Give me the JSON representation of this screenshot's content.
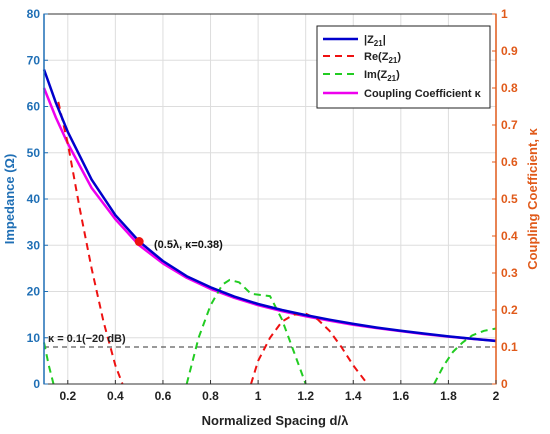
{
  "chart_data": {
    "type": "line",
    "xlabel": "Normalized Spacing d/λ",
    "ylabel_left": "Impedance (Ω)",
    "ylabel_right": "Coupling Coefficient, κ",
    "xlim": [
      0.1,
      2
    ],
    "ylim_left": [
      0,
      80
    ],
    "ylim_right": [
      0,
      1
    ],
    "x_ticks": [
      0.2,
      0.4,
      0.6,
      0.8,
      1,
      1.2,
      1.4,
      1.6,
      1.8,
      2
    ],
    "x_tick_labels": [
      "0.2",
      "0.4",
      "0.6",
      "0.8",
      "1",
      "1.2",
      "1.4",
      "1.6",
      "1.8",
      "2"
    ],
    "y_left_ticks": [
      0,
      10,
      20,
      30,
      40,
      50,
      60,
      70,
      80
    ],
    "y_left_tick_labels": [
      "0",
      "10",
      "20",
      "30",
      "40",
      "50",
      "60",
      "70",
      "80"
    ],
    "y_right_ticks": [
      0,
      0.1,
      0.2,
      0.3,
      0.4,
      0.5,
      0.6,
      0.7,
      0.8,
      0.9,
      1
    ],
    "y_right_tick_labels": [
      "0",
      "0.1",
      "0.2",
      "0.3",
      "0.4",
      "0.5",
      "0.6",
      "0.7",
      "0.8",
      "0.9",
      "1"
    ],
    "grid": true,
    "legend_placement": "top-right",
    "series": [
      {
        "name_main": "|Z",
        "name_sub": "21",
        "name_tail": "|",
        "axis": "left",
        "color": "#0000cc",
        "style": "solid",
        "x": [
          0.1,
          0.15,
          0.2,
          0.3,
          0.4,
          0.5,
          0.6,
          0.7,
          0.8,
          0.9,
          1.0,
          1.1,
          1.2,
          1.3,
          1.4,
          1.5,
          1.6,
          1.7,
          1.8,
          1.9,
          2.0
        ],
        "y": [
          68,
          60.8,
          54.5,
          44.2,
          36.5,
          30.8,
          26.6,
          23.3,
          20.9,
          18.9,
          17.3,
          16.0,
          14.9,
          13.9,
          13.0,
          12.2,
          11.5,
          10.9,
          10.3,
          9.8,
          9.3
        ]
      },
      {
        "name_main": "Re(Z",
        "name_sub": "21",
        "name_tail": ")",
        "axis": "left",
        "color": "#ee1111",
        "style": "dashed",
        "segments": [
          {
            "x": [
              0.16,
              0.2,
              0.25,
              0.3,
              0.35,
              0.4,
              0.43
            ],
            "y": [
              61,
              52,
              38,
              25,
              13.5,
              4,
              0
            ]
          },
          {
            "x": [
              0.97,
              1.0,
              1.05,
              1.1,
              1.15,
              1.2,
              1.25,
              1.3,
              1.35,
              1.4,
              1.46
            ],
            "y": [
              0,
              5,
              10,
              13.5,
              15,
              15.2,
              14,
              11.5,
              8,
              4,
              0
            ]
          }
        ]
      },
      {
        "name_main": "Im(Z",
        "name_sub": "21",
        "name_tail": ")",
        "axis": "left",
        "color": "#22cc22",
        "style": "dashed",
        "segments": [
          {
            "x": [
              0.1,
              0.12,
              0.14
            ],
            "y": [
              9,
              4,
              0
            ]
          },
          {
            "x": [
              0.7,
              0.75,
              0.8,
              0.85,
              0.88,
              0.92,
              0.97,
              1.05,
              1.1,
              1.15,
              1.2
            ],
            "y": [
              0,
              10,
              17,
              21.5,
              22.5,
              22,
              19.5,
              19,
              14,
              7,
              0
            ]
          },
          {
            "x": [
              1.74,
              1.78,
              1.82,
              1.86,
              1.9,
              1.95,
              2.0
            ],
            "y": [
              0,
              4,
              7,
              9,
              10.5,
              11.5,
              12
            ]
          }
        ]
      },
      {
        "name": "Coupling Coefficient κ",
        "axis": "right",
        "color": "#ee00ee",
        "style": "solid",
        "x": [
          0.1,
          0.15,
          0.2,
          0.3,
          0.4,
          0.5,
          0.6,
          0.7,
          0.8,
          0.9,
          1.0,
          1.1,
          1.2,
          1.3,
          1.4,
          1.5,
          1.6,
          1.7,
          1.8,
          1.9,
          2.0
        ],
        "y": [
          0.8,
          0.72,
          0.65,
          0.53,
          0.445,
          0.375,
          0.326,
          0.287,
          0.257,
          0.233,
          0.213,
          0.197,
          0.183,
          0.171,
          0.16,
          0.151,
          0.143,
          0.135,
          0.128,
          0.122,
          0.117
        ]
      }
    ],
    "reference_line": {
      "y_left": 8,
      "label": "κ = 0.1(−20 dB)"
    },
    "marker": {
      "x": 0.5,
      "y_left": 30.8,
      "label": "(0.5λ, κ=0.38)",
      "color": "#ee1111"
    }
  }
}
